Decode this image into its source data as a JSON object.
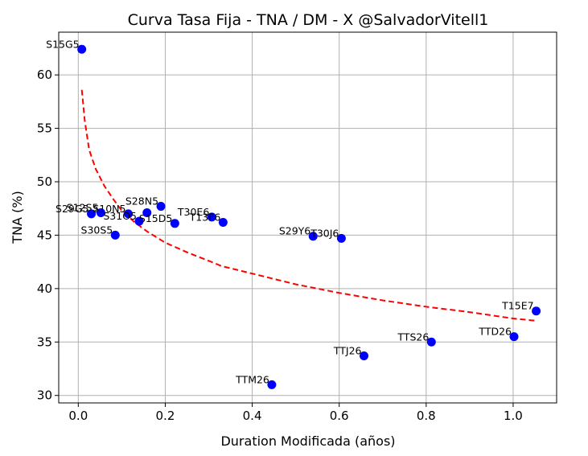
{
  "chart_data": {
    "type": "scatter",
    "title": "Curva Tasa Fija - TNA / DM - X @SalvadorVitell1",
    "xlabel": "Duration Modificada (años)",
    "ylabel": "TNA (%)",
    "xlim": [
      -0.045,
      1.1
    ],
    "ylim": [
      29.3,
      64.0
    ],
    "xticks": [
      0.0,
      0.2,
      0.4,
      0.6,
      0.8,
      1.0
    ],
    "xtick_labels": [
      "0.0",
      "0.2",
      "0.4",
      "0.6",
      "0.8",
      "1.0"
    ],
    "yticks": [
      30,
      35,
      40,
      45,
      50,
      55,
      60
    ],
    "ytick_labels": [
      "30",
      "35",
      "40",
      "45",
      "50",
      "55",
      "60"
    ],
    "grid": true,
    "point_color": "#0000ff",
    "curve_color": "#ff0000",
    "points": [
      {
        "label": "S15G5",
        "x": 0.008,
        "y": 62.4
      },
      {
        "label": "S29G5",
        "x": 0.03,
        "y": 47.0
      },
      {
        "label": "S12S5",
        "x": 0.052,
        "y": 47.1
      },
      {
        "label": "S30S5",
        "x": 0.085,
        "y": 45.0
      },
      {
        "label": "S10N5",
        "x": 0.115,
        "y": 47.0
      },
      {
        "label": "S31O5",
        "x": 0.14,
        "y": 46.3
      },
      {
        "label": "S28N5",
        "x": 0.158,
        "y": 47.1
      },
      {
        "label": "S28N5b",
        "x": 0.19,
        "y": 47.7
      },
      {
        "label": "S15D5",
        "x": 0.222,
        "y": 46.1
      },
      {
        "label": "T30E6",
        "x": 0.307,
        "y": 46.7
      },
      {
        "label": "T13F6",
        "x": 0.333,
        "y": 46.2
      },
      {
        "label": "TTM26",
        "x": 0.445,
        "y": 31.0
      },
      {
        "label": "S29Y6",
        "x": 0.54,
        "y": 44.9
      },
      {
        "label": "T30J6",
        "x": 0.605,
        "y": 44.7
      },
      {
        "label": "TTJ26",
        "x": 0.657,
        "y": 33.7
      },
      {
        "label": "TTS26",
        "x": 0.812,
        "y": 35.0
      },
      {
        "label": "TTD26",
        "x": 1.002,
        "y": 35.5
      },
      {
        "label": "T15E7",
        "x": 1.053,
        "y": 37.9
      }
    ],
    "labels": [
      {
        "text": "S15G5",
        "x": 0.008,
        "y": 62.4
      },
      {
        "text": "S29G5",
        "x": 0.03,
        "y": 47.0
      },
      {
        "text": "S12S5",
        "x": 0.052,
        "y": 47.1
      },
      {
        "text": "S30S5",
        "x": 0.085,
        "y": 45.0
      },
      {
        "text": "S10N5",
        "x": 0.115,
        "y": 47.0
      },
      {
        "text": "S31O5",
        "x": 0.14,
        "y": 46.3
      },
      {
        "text": "S28N5",
        "x": 0.19,
        "y": 47.7
      },
      {
        "text": "S15D5",
        "x": 0.222,
        "y": 46.1
      },
      {
        "text": "T30E6",
        "x": 0.307,
        "y": 46.7
      },
      {
        "text": "T13F6",
        "x": 0.333,
        "y": 46.2
      },
      {
        "text": "TTM26",
        "x": 0.445,
        "y": 31.0
      },
      {
        "text": "S29Y6",
        "x": 0.54,
        "y": 44.9
      },
      {
        "text": "T30J6",
        "x": 0.605,
        "y": 44.7
      },
      {
        "text": "TTJ26",
        "x": 0.657,
        "y": 33.7
      },
      {
        "text": "TTS26",
        "x": 0.812,
        "y": 35.0
      },
      {
        "text": "TTD26",
        "x": 1.002,
        "y": 35.5
      },
      {
        "text": "T15E7",
        "x": 1.053,
        "y": 37.9
      }
    ],
    "fit_curve": {
      "x": [
        0.008,
        0.015,
        0.025,
        0.04,
        0.06,
        0.08,
        0.1,
        0.13,
        0.16,
        0.2,
        0.25,
        0.3,
        0.33,
        0.4,
        0.5,
        0.6,
        0.7,
        0.8,
        0.9,
        1.0,
        1.05
      ],
      "y": [
        58.6,
        55.7,
        53.0,
        51.2,
        49.6,
        48.4,
        47.3,
        46.2,
        45.3,
        44.3,
        43.4,
        42.6,
        42.1,
        41.4,
        40.4,
        39.6,
        38.9,
        38.3,
        37.8,
        37.2,
        37.0
      ]
    }
  }
}
